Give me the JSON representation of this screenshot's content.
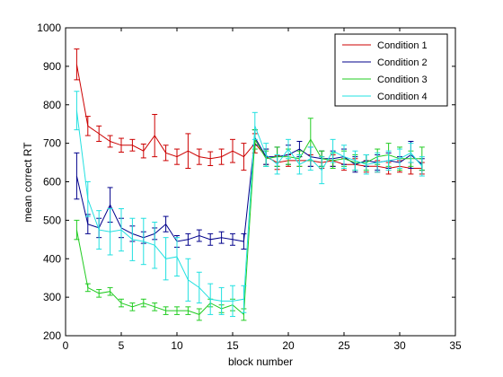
{
  "chart_data": {
    "type": "line",
    "title": "",
    "xlabel": "block number",
    "ylabel": "mean correct RT",
    "xlim": [
      0,
      35
    ],
    "ylim": [
      200,
      1000
    ],
    "xticks": [
      0,
      5,
      10,
      15,
      20,
      25,
      30,
      35
    ],
    "yticks": [
      200,
      300,
      400,
      500,
      600,
      700,
      800,
      900,
      1000
    ],
    "grid": false,
    "legend_position": "top-right",
    "x": [
      1,
      2,
      3,
      4,
      5,
      6,
      7,
      8,
      9,
      10,
      11,
      12,
      13,
      14,
      15,
      16,
      17,
      18,
      19,
      20,
      21,
      22,
      23,
      24,
      25,
      26,
      27,
      28,
      29,
      30,
      31,
      32
    ],
    "series": [
      {
        "name": "Condition 1",
        "color": "#cc0000",
        "values": [
          905,
          745,
          725,
          705,
          695,
          695,
          680,
          720,
          675,
          665,
          680,
          665,
          660,
          665,
          680,
          665,
          700,
          665,
          650,
          655,
          655,
          655,
          650,
          655,
          645,
          645,
          640,
          640,
          635,
          640,
          635,
          635
        ],
        "errors": [
          40,
          25,
          20,
          15,
          18,
          15,
          18,
          55,
          20,
          20,
          45,
          20,
          18,
          20,
          30,
          35,
          25,
          20,
          18,
          15,
          15,
          15,
          15,
          15,
          15,
          15,
          15,
          15,
          15,
          15,
          15,
          15
        ]
      },
      {
        "name": "Condition 2",
        "color": "#00008b",
        "values": [
          615,
          490,
          480,
          540,
          480,
          465,
          455,
          465,
          490,
          445,
          450,
          460,
          450,
          455,
          450,
          445,
          715,
          665,
          665,
          670,
          685,
          665,
          660,
          660,
          665,
          645,
          655,
          650,
          655,
          650,
          670,
          645
        ],
        "errors": [
          60,
          25,
          25,
          45,
          25,
          20,
          15,
          15,
          20,
          15,
          15,
          15,
          15,
          15,
          15,
          20,
          20,
          20,
          25,
          25,
          20,
          25,
          20,
          20,
          20,
          20,
          15,
          20,
          20,
          15,
          35,
          15
        ]
      },
      {
        "name": "Condition 3",
        "color": "#22cc22",
        "values": [
          475,
          325,
          310,
          315,
          285,
          275,
          285,
          275,
          265,
          265,
          265,
          255,
          285,
          270,
          280,
          255,
          710,
          660,
          665,
          665,
          660,
          710,
          660,
          655,
          660,
          650,
          650,
          665,
          670,
          660,
          660,
          660
        ],
        "errors": [
          25,
          10,
          10,
          10,
          10,
          10,
          10,
          10,
          10,
          10,
          10,
          15,
          10,
          10,
          15,
          15,
          25,
          20,
          25,
          20,
          20,
          55,
          20,
          20,
          20,
          20,
          20,
          20,
          30,
          30,
          20,
          30
        ]
      },
      {
        "name": "Condition 4",
        "color": "#22e0e0",
        "values": [
          785,
          555,
          475,
          470,
          475,
          450,
          445,
          435,
          400,
          405,
          345,
          325,
          295,
          290,
          290,
          295,
          745,
          670,
          645,
          685,
          645,
          660,
          630,
          680,
          665,
          655,
          645,
          650,
          655,
          660,
          675,
          640
        ],
        "errors": [
          50,
          45,
          50,
          60,
          55,
          55,
          60,
          60,
          55,
          50,
          55,
          40,
          40,
          35,
          40,
          35,
          35,
          30,
          25,
          25,
          25,
          30,
          35,
          30,
          30,
          25,
          25,
          25,
          25,
          25,
          25,
          25
        ]
      }
    ]
  }
}
